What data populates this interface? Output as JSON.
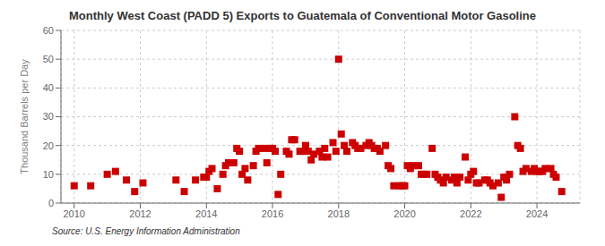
{
  "chart_data": {
    "type": "scatter",
    "title": "Monthly West Coast (PADD 5) Exports to Guatemala of Conventional Motor Gasoline",
    "y_label": "Thousand Barrels per Day",
    "source": "Source: U.S. Energy Information Administration",
    "color": "#cc0000",
    "marker": "square",
    "grid": true,
    "xlim": [
      2009.6,
      2025.3
    ],
    "xticks": [
      2010,
      2012,
      2014,
      2016,
      2018,
      2020,
      2022,
      2024
    ],
    "ylim": [
      0,
      60
    ],
    "yticks": [
      0,
      10,
      20,
      30,
      40,
      50,
      60
    ],
    "x": [
      2010.0,
      2010.5,
      2011.0,
      2011.25,
      2011.58,
      2011.83,
      2012.08,
      2013.08,
      2013.33,
      2013.67,
      2013.92,
      2014.0,
      2014.08,
      2014.17,
      2014.33,
      2014.5,
      2014.58,
      2014.67,
      2014.83,
      2014.92,
      2015.0,
      2015.08,
      2015.17,
      2015.25,
      2015.42,
      2015.5,
      2015.58,
      2015.75,
      2015.83,
      2015.92,
      2016.0,
      2016.08,
      2016.17,
      2016.25,
      2016.42,
      2016.5,
      2016.58,
      2016.67,
      2016.83,
      2016.92,
      2017.0,
      2017.08,
      2017.17,
      2017.25,
      2017.42,
      2017.5,
      2017.58,
      2017.67,
      2017.83,
      2017.92,
      2018.0,
      2018.08,
      2018.17,
      2018.25,
      2018.42,
      2018.5,
      2018.58,
      2018.67,
      2018.83,
      2018.92,
      2019.0,
      2019.08,
      2019.17,
      2019.25,
      2019.42,
      2019.5,
      2019.58,
      2019.67,
      2019.83,
      2019.92,
      2020.0,
      2020.08,
      2020.17,
      2020.25,
      2020.42,
      2020.5,
      2020.58,
      2020.67,
      2020.83,
      2020.92,
      2021.0,
      2021.08,
      2021.17,
      2021.25,
      2021.42,
      2021.5,
      2021.58,
      2021.67,
      2021.83,
      2021.92,
      2022.0,
      2022.08,
      2022.17,
      2022.25,
      2022.42,
      2022.5,
      2022.58,
      2022.67,
      2022.83,
      2022.92,
      2023.0,
      2023.08,
      2023.17,
      2023.33,
      2023.42,
      2023.5,
      2023.58,
      2023.67,
      2023.83,
      2023.92,
      2024.0,
      2024.08,
      2024.17,
      2024.25,
      2024.42,
      2024.5,
      2024.58,
      2024.75
    ],
    "values": [
      6,
      6,
      10,
      11,
      8,
      4,
      7,
      8,
      4,
      8,
      9,
      9,
      11,
      12,
      5,
      10,
      13,
      14,
      14,
      19,
      18,
      10,
      12,
      8,
      13,
      18,
      19,
      19,
      14,
      19,
      19,
      18,
      3,
      10,
      18,
      17,
      22,
      22,
      18,
      18,
      20,
      18,
      15,
      17,
      18,
      16,
      19,
      16,
      21,
      18,
      50,
      24,
      20,
      18,
      21,
      20,
      19,
      19,
      20,
      21,
      20,
      19,
      19,
      18,
      20,
      13,
      12,
      6,
      6,
      6,
      6,
      13,
      12,
      13,
      13,
      10,
      10,
      10,
      19,
      10,
      9,
      8,
      7,
      9,
      8,
      9,
      7,
      9,
      16,
      8,
      10,
      11,
      7,
      7,
      8,
      8,
      7,
      6,
      7,
      2,
      9,
      8,
      10,
      30,
      20,
      19,
      11,
      12,
      11,
      12,
      11,
      11,
      11,
      12,
      12,
      10,
      9,
      4
    ]
  }
}
